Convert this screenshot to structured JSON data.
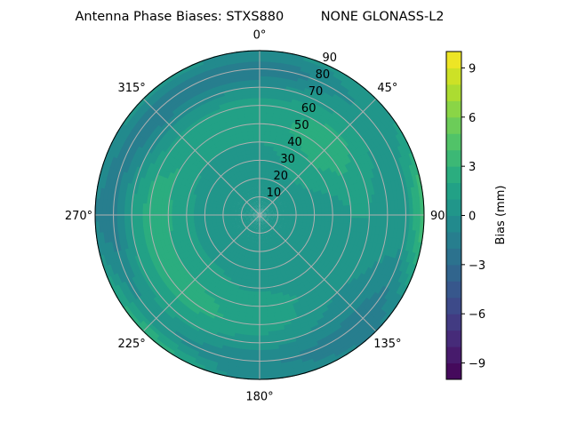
{
  "chart_data": {
    "type": "heatmap",
    "subtype": "polar-filled-contour",
    "title": "Antenna Phase Biases: STXS880         NONE GLONASS-L2",
    "angular_axis": {
      "direction": "clockwise",
      "zero_location": "top",
      "tick_labels": [
        "0°",
        "45°",
        "90°",
        "135°",
        "180°",
        "225°",
        "270°",
        "315°"
      ]
    },
    "radial_axis": {
      "range": [
        0,
        90
      ],
      "tick_labels": [
        "10",
        "20",
        "30",
        "40",
        "50",
        "60",
        "70",
        "80",
        "90"
      ]
    },
    "grid": true,
    "azimuths_deg": [
      0,
      45,
      90,
      135,
      180,
      225,
      270,
      315
    ],
    "radii": [
      0,
      10,
      20,
      30,
      40,
      50,
      60,
      70,
      80,
      90
    ],
    "values_mm": [
      [
        0.5,
        0.5,
        0.5,
        0.5,
        0.5,
        0.5,
        0.5,
        0.5
      ],
      [
        0.5,
        0.5,
        0.5,
        0.5,
        0.5,
        0.5,
        0.5,
        0.5
      ],
      [
        0.5,
        0.7,
        0.5,
        0.5,
        0.5,
        0.5,
        0.5,
        0.5
      ],
      [
        0.6,
        1.2,
        0.5,
        0.5,
        0.6,
        0.7,
        0.7,
        0.7
      ],
      [
        1.0,
        2.0,
        0.6,
        0.5,
        0.8,
        1.2,
        1.2,
        1.0
      ],
      [
        1.6,
        2.6,
        1.0,
        0.5,
        1.6,
        2.0,
        2.1,
        2.0
      ],
      [
        1.6,
        2.2,
        1.0,
        0.0,
        1.6,
        2.5,
        2.5,
        1.5
      ],
      [
        0.0,
        1.0,
        0.5,
        -0.6,
        0.5,
        1.5,
        1.0,
        -0.6
      ],
      [
        -2.0,
        0.0,
        0.6,
        -1.6,
        -1.0,
        0.0,
        -1.5,
        -2.0
      ],
      [
        0.0,
        0.5,
        4.0,
        -1.0,
        -0.5,
        3.0,
        -1.0,
        0.5
      ]
    ],
    "colorbar": {
      "label": "Bias (mm)",
      "colormap": "viridis",
      "range": [
        -10,
        10
      ],
      "levels_step": 1,
      "tick_values": [
        -9,
        -6,
        -3,
        0,
        3,
        6,
        9
      ],
      "tick_labels": [
        "−9",
        "−6",
        "−3",
        "0",
        "3",
        "6",
        "9"
      ]
    }
  }
}
